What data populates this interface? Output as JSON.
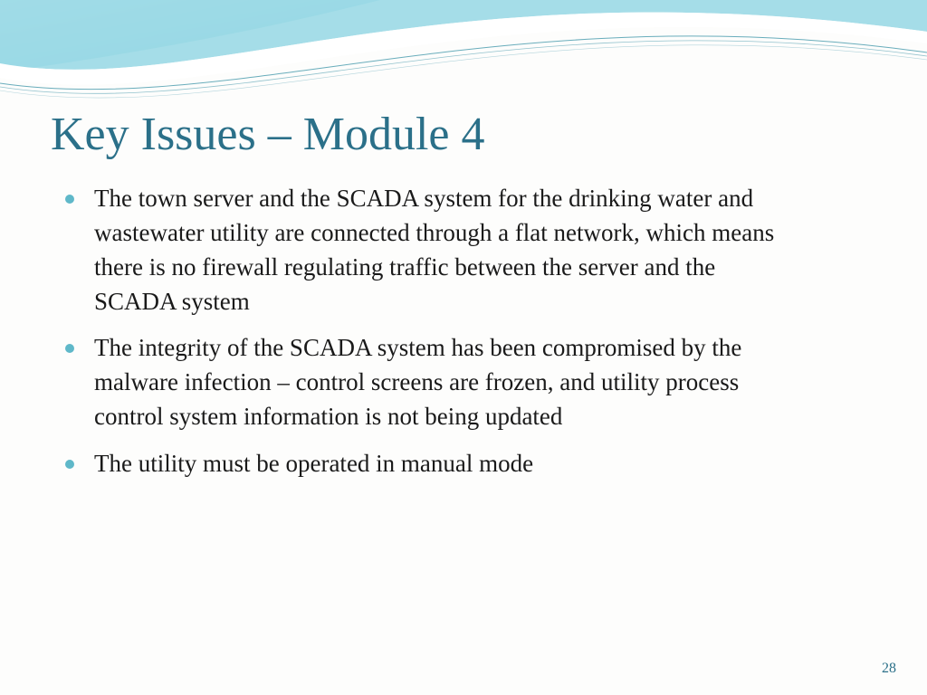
{
  "slide": {
    "title": "Key Issues – Module 4",
    "bullets": [
      "The town server and the SCADA system for the drinking water and wastewater utility are connected through a flat network, which means there is no firewall regulating traffic between the server and the SCADA system",
      "The integrity of the SCADA system has been compromised by the malware infection – control screens are frozen, and utility process control system information is not being updated",
      "The utility must be operated in manual mode"
    ],
    "page_number": "28"
  },
  "style": {
    "title_color": "#2b7089",
    "title_fontsize": 52,
    "body_color": "#1a1a1a",
    "body_fontsize": 27,
    "bullet_color": "#5fb8c9",
    "pagenum_color": "#2b7089",
    "background_color": "#fdfdfc",
    "wave_fill": "#9bd9e6",
    "wave_gradient_start": "#cfeef4",
    "wave_gradient_end": "#58bed2",
    "wave_line_color": "#2a8aa0"
  }
}
